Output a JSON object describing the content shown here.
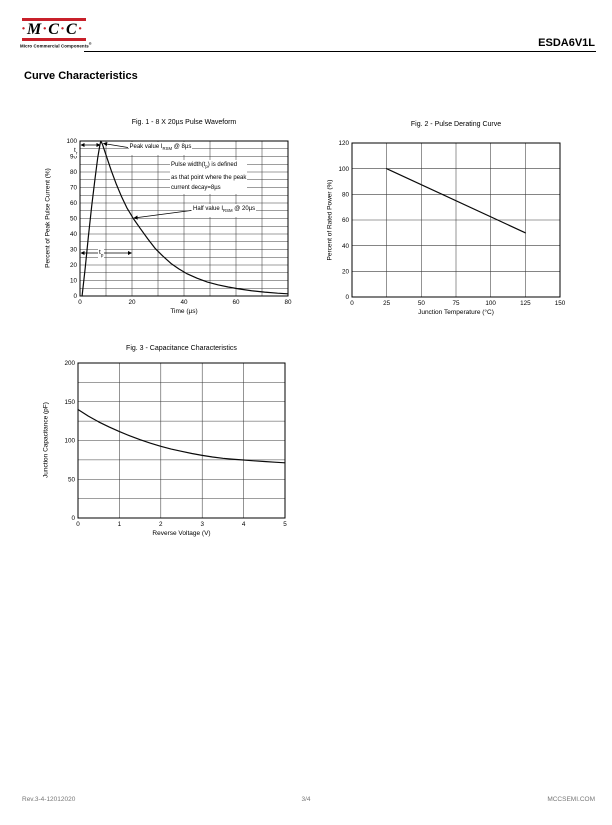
{
  "header": {
    "brand": {
      "letters": [
        "M",
        "C",
        "C"
      ],
      "dot": "·",
      "tagline": "Micro Commercial Components",
      "reg_mark": "®",
      "accent_color": "#c8202a"
    },
    "part_number": "ESDA6V1L"
  },
  "page": {
    "section_title": "Curve Characteristics"
  },
  "footer": {
    "revision": "Rev.3-4-12012020",
    "page_number": "3/4",
    "website": "MCCSEMI.COM"
  },
  "chart_data": [
    {
      "type": "line",
      "title": "Fig. 1 - 8 X 20µs Pulse Waveform",
      "xlabel": "Time (µs)",
      "ylabel": "Percent of Peak Pulse Current (%)",
      "xlim": [
        0,
        80
      ],
      "ylim": [
        0,
        100
      ],
      "x_tick_step": 20,
      "x_grid_step": 10,
      "y_tick_step": 10,
      "y_grid_step": 5,
      "grid": "on",
      "legend": "none",
      "series": [
        {
          "name": "pulse-waveform-curve",
          "x": [
            0.8,
            2,
            3.2,
            4.5,
            5.8,
            6.8,
            7.6,
            8,
            8.6,
            10,
            12,
            14,
            16,
            18,
            20.5,
            23,
            26,
            29,
            32,
            35,
            38,
            41,
            45,
            49,
            53,
            57,
            61,
            66,
            71,
            76,
            80
          ],
          "y": [
            0,
            18,
            38,
            58,
            76,
            89,
            97,
            100,
            98,
            91,
            81,
            72,
            64,
            57,
            50,
            44,
            37,
            30.5,
            25.5,
            21,
            17.5,
            14.5,
            11.5,
            9,
            7.2,
            5.8,
            4.6,
            3.4,
            2.5,
            1.8,
            1.4
          ]
        }
      ],
      "annotations": {
        "peak": {
          "pre": "Peak value I",
          "sub": "RSM",
          "post": " @ 8µs"
        },
        "pulse_width": {
          "line1_pre": "Pulse width(t",
          "line1_sub": "p",
          "line1_post": ") is defined",
          "line2": "as that point where the peak",
          "line3": "current decay=8µs"
        },
        "half": {
          "pre": "Half  value I",
          "sub": "RSM",
          "post": " @ 20µs"
        },
        "rise_time": {
          "pre": "t",
          "sub": "r"
        },
        "pulse_time": {
          "pre": "t",
          "sub": "p"
        }
      },
      "key_points": {
        "peak_percent": 100,
        "peak_time_us": 8,
        "half_percent": 50,
        "half_time_us": 20
      }
    },
    {
      "type": "line",
      "title": "Fig. 2 - Pulse Derating Curve",
      "xlabel": "Junction Temperature (°C)",
      "ylabel": "Percent of Rated Power (%)",
      "xlim": [
        0,
        150
      ],
      "ylim": [
        0,
        120
      ],
      "x_tick_step": 25,
      "x_grid_step": 25,
      "y_tick_step": 20,
      "y_grid_step": 20,
      "grid": "on",
      "legend": "none",
      "series": [
        {
          "name": "derating-line",
          "x": [
            25,
            125
          ],
          "y": [
            100,
            50
          ]
        }
      ]
    },
    {
      "type": "line",
      "title": "Fig. 3 - Capacitance Characteristics",
      "xlabel": "Reverse Voltage (V)",
      "ylabel": "Junction Capacitance (pF)",
      "xlim": [
        0,
        5
      ],
      "ylim": [
        0,
        200
      ],
      "x_tick_step": 1,
      "x_grid_step": 1,
      "y_tick_step": 50,
      "y_grid_step": 25,
      "grid": "on",
      "legend": "none",
      "series": [
        {
          "name": "capacitance-curve",
          "x": [
            0,
            0.25,
            0.5,
            0.75,
            1,
            1.25,
            1.5,
            1.75,
            2,
            2.25,
            2.5,
            2.75,
            3,
            3.25,
            3.5,
            3.75,
            4,
            4.25,
            4.5,
            4.75,
            5
          ],
          "y": [
            140,
            131.5,
            124,
            117.5,
            111.5,
            106,
            101,
            96.5,
            92.5,
            89,
            86,
            83.2,
            80.8,
            78.7,
            77,
            75.8,
            74.8,
            73.8,
            72.9,
            72,
            71.2
          ]
        }
      ]
    }
  ]
}
